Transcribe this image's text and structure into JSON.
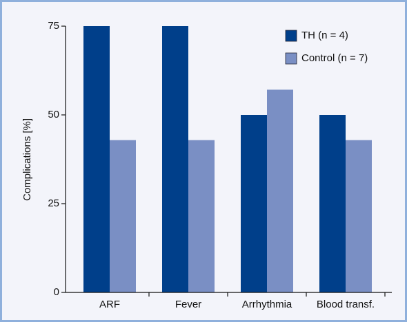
{
  "chart_data": {
    "type": "bar",
    "ylabel": "Complications [%]",
    "categories": [
      "ARF",
      "Fever",
      "Arrhythmia",
      "Blood transf."
    ],
    "series": [
      {
        "name": "TH (n = 4)",
        "color": "#003f8a",
        "values": [
          75,
          75,
          50,
          50
        ]
      },
      {
        "name": "Control (n = 7)",
        "color": "#7a8fc4",
        "values": [
          42.9,
          42.9,
          57.1,
          42.9
        ]
      }
    ],
    "ylim": [
      0,
      75
    ],
    "yticks": [
      0,
      25,
      50,
      75
    ],
    "legend": "upper right"
  }
}
